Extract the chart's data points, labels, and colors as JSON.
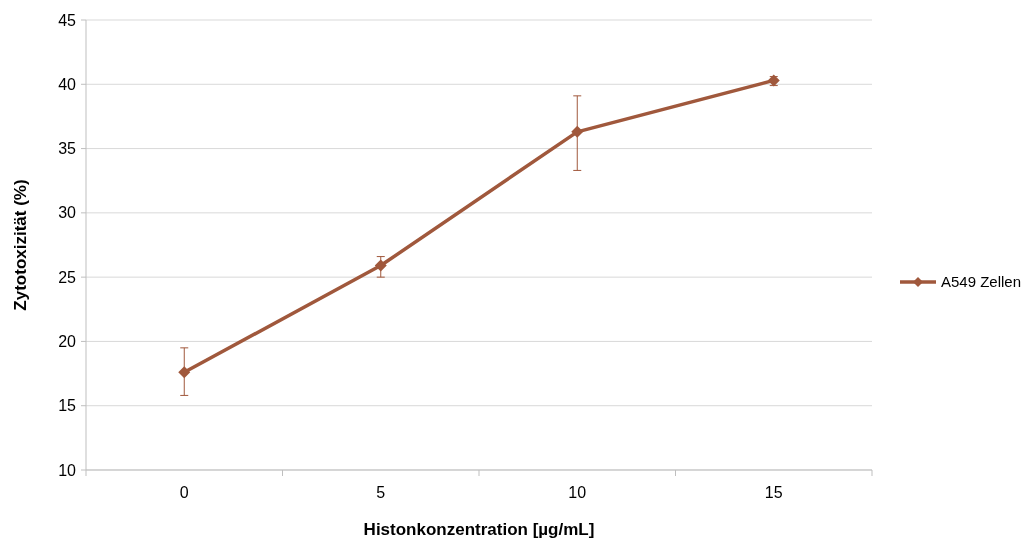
{
  "chart_data": {
    "type": "line",
    "xlabel": "Histonkonzentration [µg/mL]",
    "ylabel": "Zytotoxizität (%)",
    "categories": [
      "0",
      "5",
      "10",
      "15"
    ],
    "series": [
      {
        "name": "A549 Zellen",
        "color": "#a0583c",
        "values": [
          17.6,
          25.9,
          36.3,
          40.3
        ],
        "errors": [
          [
            15.8,
            19.5
          ],
          [
            25.0,
            26.6
          ],
          [
            33.3,
            39.1
          ],
          [
            39.9,
            40.6
          ]
        ]
      }
    ],
    "ylim": [
      10,
      45
    ],
    "yticks": [
      10,
      15,
      20,
      25,
      30,
      35,
      40,
      45
    ],
    "grid": "y",
    "legend": "right",
    "marker": "diamond",
    "line_style": "solid"
  }
}
